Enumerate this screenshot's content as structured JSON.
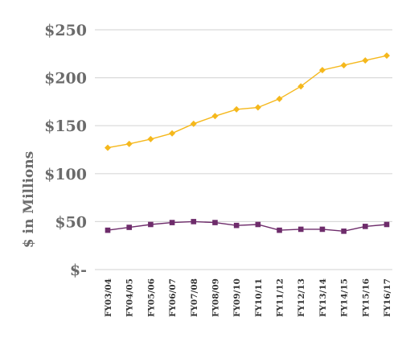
{
  "chart_data": {
    "type": "line",
    "categories": [
      "FY03/04",
      "FY04/05",
      "FY05/06",
      "FY06/07",
      "FY07/08",
      "FY08/09",
      "FY09/10",
      "FY10/11",
      "FY11/12",
      "FY12/13",
      "FY13/14",
      "FY14/15",
      "FY15/16",
      "FY16/17"
    ],
    "series": [
      {
        "values": [
          127,
          131,
          136,
          142,
          152,
          160,
          167,
          169,
          178,
          191,
          208,
          213,
          218,
          223
        ],
        "color": "#f5b81c",
        "marker": "diamond"
      },
      {
        "values": [
          41,
          44,
          47,
          49,
          50,
          49,
          46,
          47,
          41,
          42,
          42,
          40,
          45,
          47
        ],
        "color": "#6e2c6b",
        "marker": "square"
      }
    ],
    "ylabel": "$ in Millions",
    "ylim": [
      0,
      250
    ],
    "yticks": [
      {
        "value": 0,
        "label": "$-"
      },
      {
        "value": 50,
        "label": "$50"
      },
      {
        "value": 100,
        "label": "$100"
      },
      {
        "value": 150,
        "label": "$150"
      },
      {
        "value": 200,
        "label": "$200"
      },
      {
        "value": 250,
        "label": "$250"
      }
    ],
    "grid": true,
    "gridline_color": "#d9d9d9",
    "legend": "none"
  }
}
